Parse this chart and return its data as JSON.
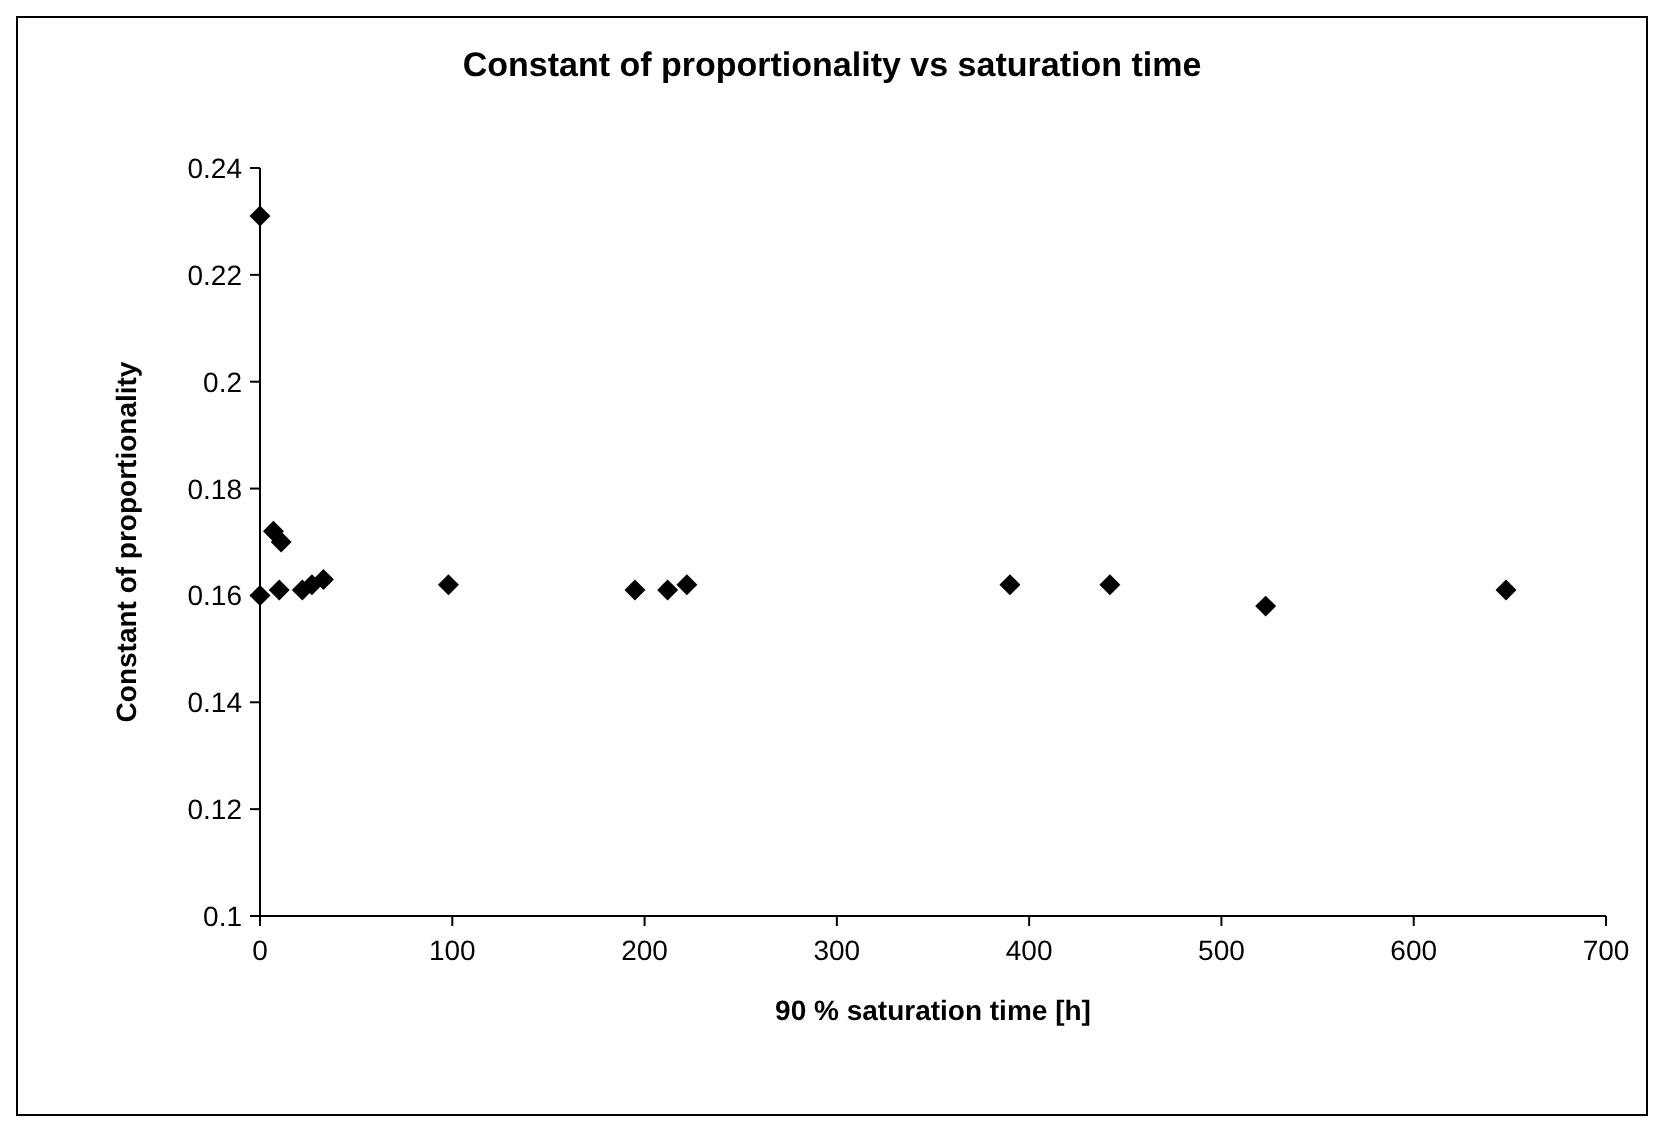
{
  "chart_data": {
    "type": "scatter",
    "title": "Constant of proportionality vs saturation time",
    "xlabel": "90 % saturation time [h]",
    "ylabel": "Constant of proportionality",
    "x": [
      0,
      0,
      7,
      11,
      10,
      22,
      27,
      33,
      98,
      195,
      212,
      222,
      390,
      442,
      523,
      648
    ],
    "series": [
      {
        "color": "#000000",
        "values": [
          0.231,
          0.16,
          0.172,
          0.17,
          0.161,
          0.161,
          0.162,
          0.163,
          0.162,
          0.161,
          0.161,
          0.162,
          0.162,
          0.162,
          0.158,
          0.161
        ]
      }
    ],
    "xlim": [
      0,
      700
    ],
    "xticks": [
      0,
      100,
      200,
      300,
      400,
      500,
      600,
      700
    ],
    "ylim": [
      0.1,
      0.24
    ],
    "yticks": [
      0.1,
      0.12,
      0.14,
      0.16,
      0.18,
      0.2,
      0.22,
      0.24
    ],
    "marker": "diamond"
  }
}
